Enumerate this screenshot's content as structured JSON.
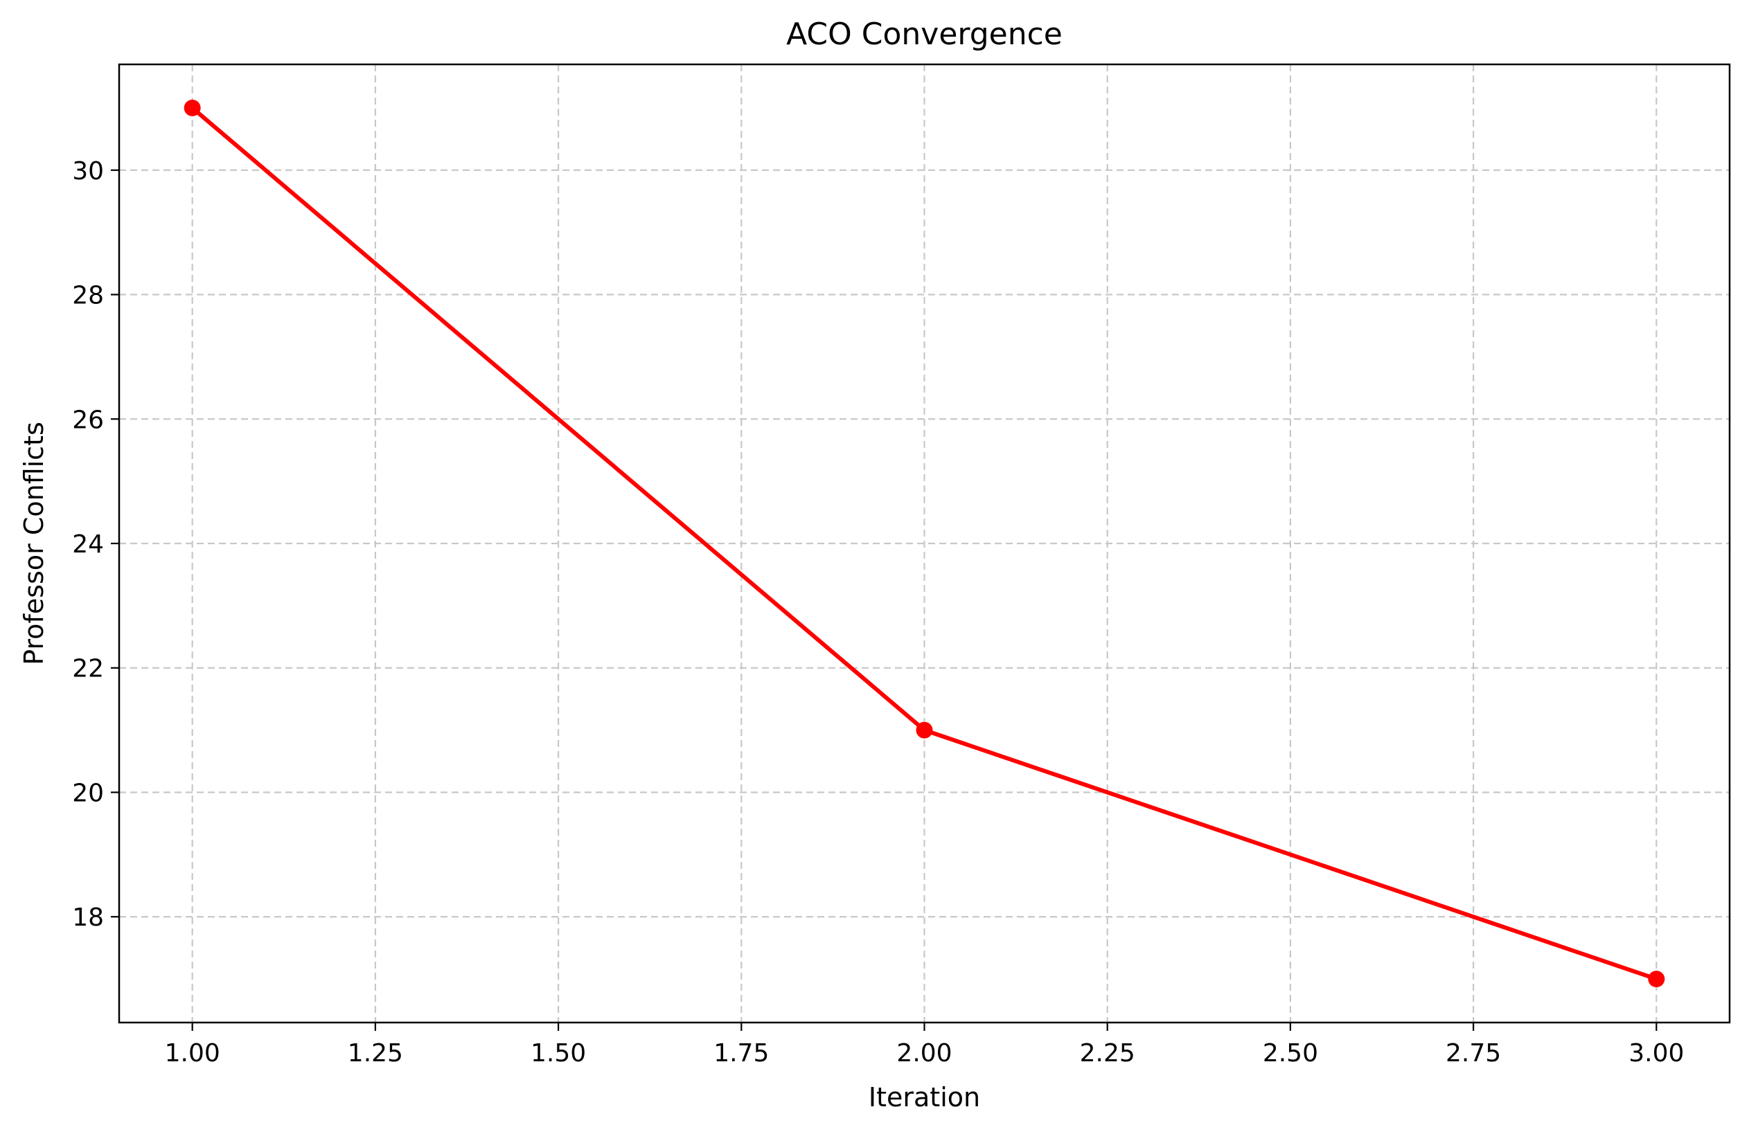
{
  "chart_data": {
    "type": "line",
    "title": "ACO Convergence",
    "xlabel": "Iteration",
    "ylabel": "Professor Conflicts",
    "xlim": [
      0.9,
      3.1
    ],
    "ylim": [
      16.3,
      31.7
    ],
    "xticks": [
      1.0,
      1.25,
      1.5,
      1.75,
      2.0,
      2.25,
      2.5,
      2.75,
      3.0
    ],
    "xtick_labels": [
      "1.00",
      "1.25",
      "1.50",
      "1.75",
      "2.00",
      "2.25",
      "2.50",
      "2.75",
      "3.00"
    ],
    "yticks": [
      18,
      20,
      22,
      24,
      26,
      28,
      30
    ],
    "ytick_labels": [
      "18",
      "20",
      "22",
      "24",
      "26",
      "28",
      "30"
    ],
    "grid": true,
    "series": [
      {
        "x": [
          1,
          2,
          3
        ],
        "y": [
          31,
          21,
          17
        ],
        "color": "#ff0000",
        "marker": "circle"
      }
    ]
  }
}
